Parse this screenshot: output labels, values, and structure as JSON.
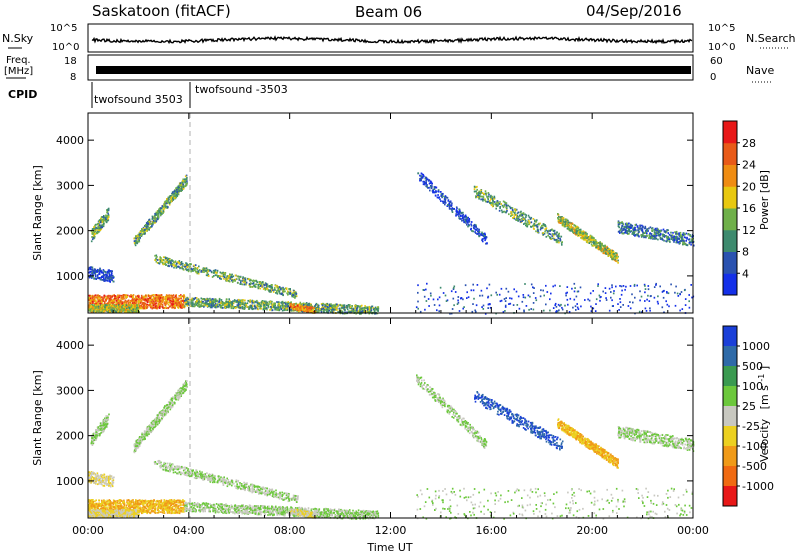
{
  "header": {
    "title": "Saskatoon (fitACF)",
    "beam": "Beam 06",
    "date": "04/Sep/2016"
  },
  "strips": {
    "nsky_label": "N.Sky",
    "nsky_ticks": [
      "10^5",
      "10^0"
    ],
    "nsearch_label": "N.Search",
    "nsearch_ticks": [
      "10^5",
      "10^0"
    ],
    "freq_label": "Freq.",
    "freq_unit": "[MHz]",
    "freq_ticks": [
      "18",
      "8"
    ],
    "nave_label": "Nave",
    "nave_ticks": [
      "60",
      "0"
    ],
    "cpid_label": "CPID",
    "cpid_1": "twofsound 3503",
    "cpid_2": "twofsound -3503"
  },
  "chart_data": [
    {
      "type": "heatmap",
      "panel": "power",
      "ylabel": "Slant Range [km]",
      "y_ticks": [
        "1000",
        "2000",
        "3000",
        "4000"
      ],
      "ylim": [
        180,
        4600
      ],
      "x_ticks": [
        "00:00",
        "04:00",
        "08:00",
        "12:00",
        "16:00",
        "20:00",
        "00:00"
      ],
      "xlim_hours": [
        0,
        24
      ],
      "colorbar": {
        "label": "Power [dB]",
        "ticks": [
          "4",
          "8",
          "12",
          "16",
          "20",
          "24",
          "28"
        ],
        "colors": [
          "#1430e8",
          "#2a52b0",
          "#3d8a6e",
          "#6fb04a",
          "#e8c810",
          "#ef8c12",
          "#e85a18",
          "#e81818"
        ]
      }
    },
    {
      "type": "heatmap",
      "panel": "velocity",
      "ylabel": "Slant Range [km]",
      "y_ticks": [
        "1000",
        "2000",
        "3000",
        "4000"
      ],
      "ylim": [
        180,
        4600
      ],
      "x_ticks": [
        "00:00",
        "04:00",
        "08:00",
        "12:00",
        "16:00",
        "20:00",
        "00:00"
      ],
      "xlabel": "Time UT",
      "xlim_hours": [
        0,
        24
      ],
      "colorbar": {
        "label": "Velocity",
        "unit": "[m s",
        "unit_sup": "-1",
        "unit_close": "]",
        "ticks": [
          "1000",
          "500",
          "100",
          "25",
          "-25",
          "-100",
          "-500",
          "-1000"
        ],
        "colors": [
          "#1a3fd8",
          "#2e6aa8",
          "#3a9a50",
          "#6cc83c",
          "#c8c8c0",
          "#ecd020",
          "#f09a18",
          "#f06a12",
          "#e81818"
        ]
      }
    }
  ]
}
